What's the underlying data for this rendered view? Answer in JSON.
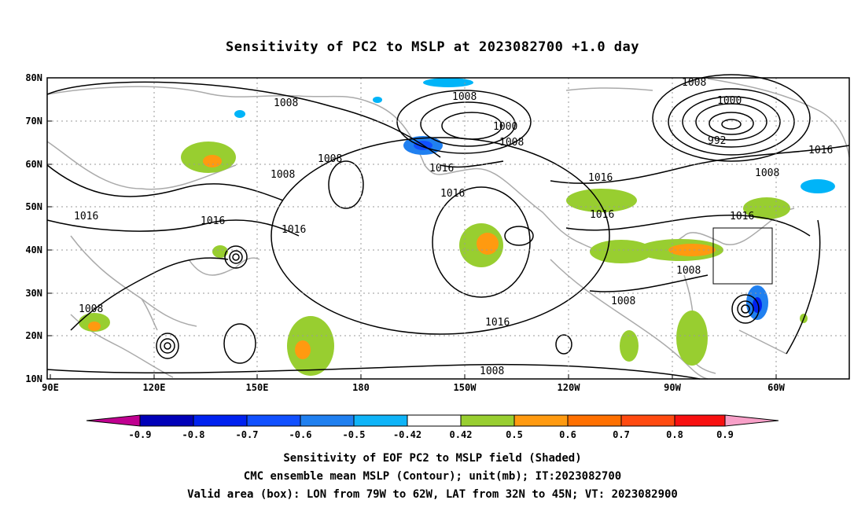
{
  "title": "Sensitivity of PC2 to MSLP at 2023082700 +1.0 day",
  "map": {
    "lat_labels": [
      "80N",
      "70N",
      "60N",
      "50N",
      "40N",
      "30N",
      "20N",
      "10N"
    ],
    "lon_labels": [
      "90E",
      "120E",
      "150E",
      "180",
      "150W",
      "120W",
      "90W",
      "60W"
    ],
    "contour_labels": [
      "1008",
      "1008",
      "1000",
      "1008",
      "992",
      "1000",
      "1008",
      "1016",
      "1008",
      "1008",
      "1016",
      "1016",
      "1016",
      "1016",
      "1016",
      "1016",
      "1016",
      "1008",
      "1008",
      "1008",
      "1016",
      "1008"
    ],
    "valid_box": {
      "lon_from": "79W",
      "lon_to": "62W",
      "lat_from": "32N",
      "lat_to": "45N"
    }
  },
  "colorbar": {
    "labels": [
      "-0.9",
      "-0.8",
      "-0.7",
      "-0.6",
      "-0.5",
      "-0.42",
      "0.42",
      "0.5",
      "0.6",
      "0.7",
      "0.8",
      "0.9"
    ],
    "colors": [
      "#c00090",
      "#0000b8",
      "#0022f0",
      "#1150ff",
      "#2080f0",
      "#0fb4f8",
      "#00d2f8",
      "#ffffff",
      "#98ce30",
      "#ff9a10",
      "#ff7000",
      "#ff4a10",
      "#f81010",
      "#f8a0c8"
    ]
  },
  "captions": {
    "line1": "Sensitivity of EOF PC2 to MSLP field (Shaded)",
    "line2": "CMC ensemble mean MSLP (Contour); unit(mb); IT:2023082700",
    "line3": "Valid area (box): LON from 79W to 62W, LAT from 32N to 45N; VT: 2023082900"
  }
}
